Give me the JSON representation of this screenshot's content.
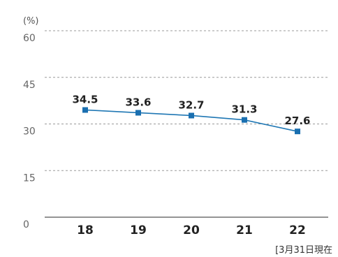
{
  "chart_data": {
    "type": "line",
    "unit_label": "(%)",
    "categories": [
      "18",
      "19",
      "20",
      "21",
      "22"
    ],
    "values": [
      34.5,
      33.6,
      32.7,
      31.3,
      27.6
    ],
    "data_labels": [
      "34.5",
      "33.6",
      "32.7",
      "31.3",
      "27.6"
    ],
    "yticks": [
      0,
      15,
      30,
      45,
      60
    ],
    "ylim": [
      0,
      60
    ],
    "grid": true,
    "footnote": "[3月31日現在",
    "colors": {
      "line": "#1f77b4",
      "marker": "#1a6fb0"
    }
  }
}
